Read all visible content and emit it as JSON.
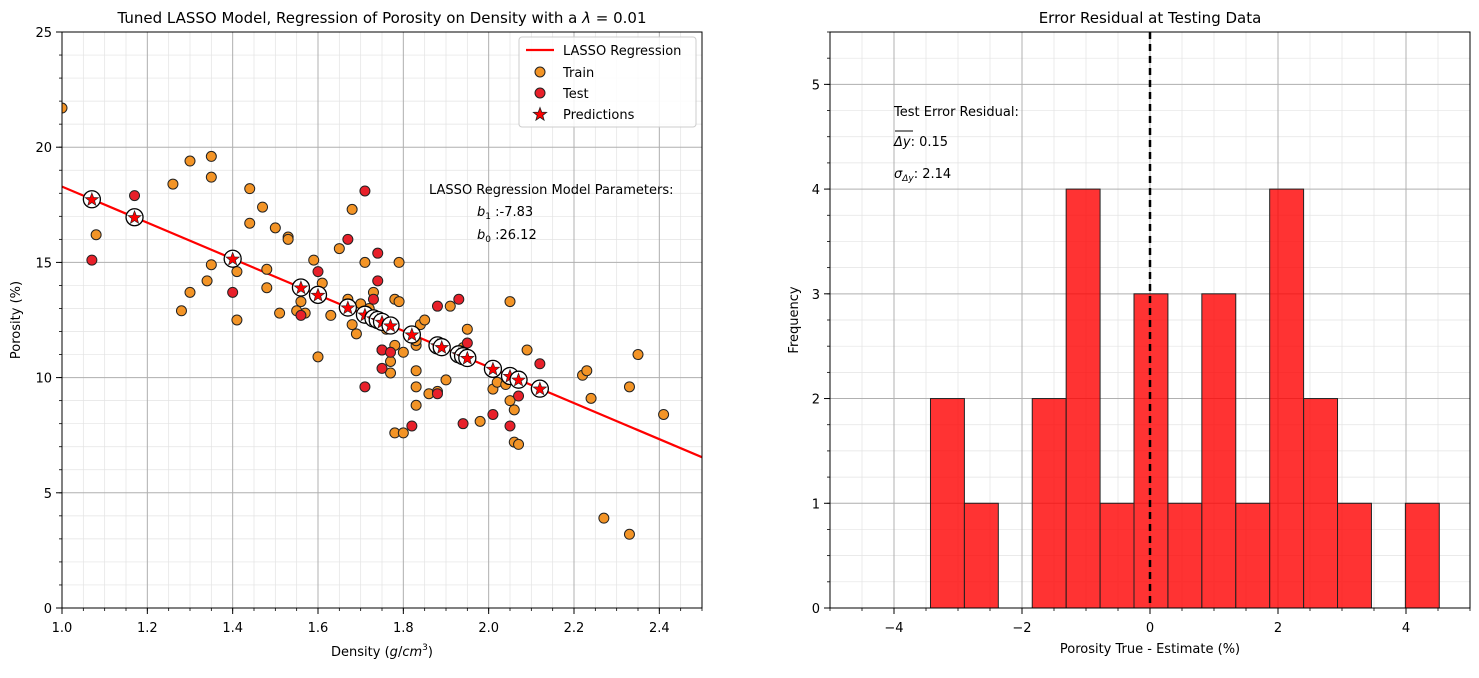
{
  "chart_data": [
    {
      "type": "scatter",
      "title": "Tuned LASSO Model, Regression of Porosity on Density with a λ = 0.01",
      "xlabel": "Density (g/cm³)",
      "ylabel": "Porosity (%)",
      "xlim": [
        1.0,
        2.5
      ],
      "ylim": [
        0,
        25
      ],
      "xticks": [
        "1.0",
        "1.2",
        "1.4",
        "1.6",
        "1.8",
        "2.0",
        "2.2",
        "2.4"
      ],
      "yticks": [
        "0",
        "5",
        "10",
        "15",
        "20",
        "25"
      ],
      "grid": true,
      "legend_position": "top-right",
      "legend": [
        "LASSO Regression",
        "Train",
        "Test",
        "Predictions"
      ],
      "colors": {
        "line": "#ff0000",
        "train": "#f39426",
        "test": "#e8202a",
        "predictions": "#ff0000"
      },
      "annotations": {
        "header": "LASSO Regression Model Parameters:",
        "b1": "b1 :-7.83",
        "b0": "b0 :26.12"
      },
      "regression_line": {
        "slope": -7.83,
        "intercept": 26.12
      },
      "series": [
        {
          "name": "Train",
          "points": [
            [
              1.0,
              21.7
            ],
            [
              1.08,
              16.2
            ],
            [
              1.26,
              18.4
            ],
            [
              1.3,
              19.4
            ],
            [
              1.35,
              19.6
            ],
            [
              1.35,
              18.7
            ],
            [
              1.28,
              12.9
            ],
            [
              1.3,
              13.7
            ],
            [
              1.34,
              14.2
            ],
            [
              1.35,
              14.9
            ],
            [
              1.41,
              14.6
            ],
            [
              1.41,
              12.5
            ],
            [
              1.44,
              16.7
            ],
            [
              1.44,
              18.2
            ],
            [
              1.47,
              17.4
            ],
            [
              1.48,
              14.7
            ],
            [
              1.48,
              13.9
            ],
            [
              1.5,
              16.5
            ],
            [
              1.51,
              12.8
            ],
            [
              1.53,
              16.1
            ],
            [
              1.53,
              16.0
            ],
            [
              1.55,
              12.9
            ],
            [
              1.56,
              13.3
            ],
            [
              1.57,
              12.8
            ],
            [
              1.59,
              15.1
            ],
            [
              1.6,
              10.9
            ],
            [
              1.61,
              14.1
            ],
            [
              1.63,
              12.7
            ],
            [
              1.65,
              15.6
            ],
            [
              1.67,
              13.4
            ],
            [
              1.68,
              17.3
            ],
            [
              1.68,
              12.3
            ],
            [
              1.69,
              11.9
            ],
            [
              1.7,
              13.2
            ],
            [
              1.71,
              15.0
            ],
            [
              1.72,
              13.0
            ],
            [
              1.73,
              13.7
            ],
            [
              1.74,
              12.5
            ],
            [
              1.75,
              11.2
            ],
            [
              1.76,
              12.1
            ],
            [
              1.77,
              10.2
            ],
            [
              1.77,
              10.7
            ],
            [
              1.78,
              11.4
            ],
            [
              1.78,
              7.6
            ],
            [
              1.78,
              13.4
            ],
            [
              1.79,
              13.3
            ],
            [
              1.79,
              15.0
            ],
            [
              1.8,
              11.1
            ],
            [
              1.8,
              7.6
            ],
            [
              1.83,
              11.4
            ],
            [
              1.83,
              11.6
            ],
            [
              1.83,
              10.3
            ],
            [
              1.83,
              9.6
            ],
            [
              1.83,
              8.8
            ],
            [
              1.84,
              12.3
            ],
            [
              1.85,
              12.5
            ],
            [
              1.86,
              9.3
            ],
            [
              1.88,
              9.4
            ],
            [
              1.9,
              9.9
            ],
            [
              1.91,
              13.1
            ],
            [
              1.94,
              11.3
            ],
            [
              1.95,
              12.1
            ],
            [
              1.98,
              8.1
            ],
            [
              2.01,
              9.5
            ],
            [
              2.02,
              9.8
            ],
            [
              2.04,
              9.7
            ],
            [
              2.05,
              13.3
            ],
            [
              2.05,
              9.0
            ],
            [
              2.06,
              8.6
            ],
            [
              2.06,
              7.2
            ],
            [
              2.07,
              7.1
            ],
            [
              2.09,
              11.2
            ],
            [
              2.22,
              10.1
            ],
            [
              2.23,
              10.3
            ],
            [
              2.24,
              9.1
            ],
            [
              2.27,
              3.9
            ],
            [
              2.33,
              3.2
            ],
            [
              2.33,
              9.6
            ],
            [
              2.35,
              11.0
            ],
            [
              2.41,
              8.4
            ]
          ]
        },
        {
          "name": "Test",
          "points": [
            [
              1.07,
              15.1
            ],
            [
              1.17,
              17.9
            ],
            [
              1.4,
              13.7
            ],
            [
              1.56,
              12.7
            ],
            [
              1.6,
              14.6
            ],
            [
              1.67,
              16.0
            ],
            [
              1.71,
              18.1
            ],
            [
              1.71,
              9.6
            ],
            [
              1.73,
              13.4
            ],
            [
              1.74,
              15.4
            ],
            [
              1.74,
              14.2
            ],
            [
              1.75,
              11.2
            ],
            [
              1.75,
              10.4
            ],
            [
              1.77,
              11.1
            ],
            [
              1.82,
              7.9
            ],
            [
              1.88,
              13.1
            ],
            [
              1.88,
              9.3
            ],
            [
              1.93,
              13.4
            ],
            [
              1.94,
              8.0
            ],
            [
              1.95,
              11.5
            ],
            [
              2.01,
              8.4
            ],
            [
              2.05,
              7.9
            ],
            [
              2.07,
              9.2
            ],
            [
              2.12,
              10.6
            ]
          ]
        },
        {
          "name": "Predictions",
          "points": [
            [
              1.07,
              17.74
            ],
            [
              1.17,
              16.96
            ],
            [
              1.4,
              15.16
            ],
            [
              1.56,
              13.91
            ],
            [
              1.6,
              13.59
            ],
            [
              1.67,
              13.04
            ],
            [
              1.71,
              12.73
            ],
            [
              1.73,
              12.57
            ],
            [
              1.74,
              12.5
            ],
            [
              1.75,
              12.42
            ],
            [
              1.77,
              12.26
            ],
            [
              1.82,
              11.87
            ],
            [
              1.88,
              11.4
            ],
            [
              1.89,
              11.32
            ],
            [
              1.93,
              11.01
            ],
            [
              1.94,
              10.93
            ],
            [
              1.95,
              10.85
            ],
            [
              2.01,
              10.38
            ],
            [
              2.05,
              10.07
            ],
            [
              2.07,
              9.91
            ],
            [
              2.12,
              9.52
            ]
          ]
        }
      ]
    },
    {
      "type": "bar",
      "title": "Error Residual at Testing Data",
      "xlabel": "Porosity True - Estimate (%)",
      "ylabel": "Frequency",
      "xlim": [
        -5.0,
        5.0
      ],
      "ylim": [
        0,
        5.5
      ],
      "xticks": [
        "−4",
        "−2",
        "0",
        "2",
        "4"
      ],
      "yticks": [
        "0",
        "1",
        "2",
        "3",
        "4",
        "5"
      ],
      "grid": true,
      "colors": {
        "bars": "#ff0000"
      },
      "annotations": {
        "header": "Test Error Residual:",
        "mean": ": 0.15",
        "std": ": 2.14"
      },
      "reference_line_x": 0,
      "bin_edges": [
        -3.43,
        -2.9,
        -2.37,
        -1.84,
        -1.31,
        -0.78,
        -0.25,
        0.28,
        0.81,
        1.34,
        1.87,
        2.4,
        2.93,
        3.46,
        3.99,
        4.52
      ],
      "values": [
        2,
        1,
        0,
        2,
        4,
        1,
        3,
        1,
        3,
        1,
        4,
        2,
        1,
        0,
        1
      ]
    }
  ]
}
